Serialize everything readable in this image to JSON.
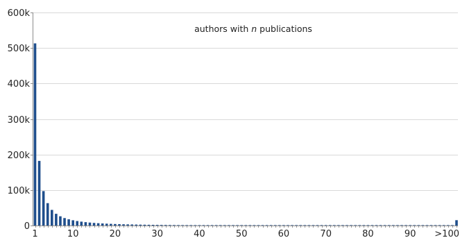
{
  "chart_data": {
    "type": "bar",
    "title_parts": [
      "authors with ",
      "n",
      " publications"
    ],
    "xlabel": "",
    "ylabel": "",
    "bar_color": "#1f4e8c",
    "ylim": [
      0,
      600000
    ],
    "yticks": [
      {
        "value": 0,
        "label": "0"
      },
      {
        "value": 100000,
        "label": "100k"
      },
      {
        "value": 200000,
        "label": "200k"
      },
      {
        "value": 300000,
        "label": "300k"
      },
      {
        "value": 400000,
        "label": "400k"
      },
      {
        "value": 500000,
        "label": "500k"
      },
      {
        "value": 600000,
        "label": "600k"
      }
    ],
    "xticks": [
      "1",
      "10",
      "20",
      "30",
      "40",
      "50",
      "60",
      "70",
      "80",
      "90",
      ">100"
    ],
    "categories": [
      "1",
      "2",
      "3",
      "4",
      "5",
      "6",
      "7",
      "8",
      "9",
      "10",
      "11",
      "12",
      "13",
      "14",
      "15",
      "16",
      "17",
      "18",
      "19",
      "20",
      "21",
      "22",
      "23",
      "24",
      "25",
      "26",
      "27",
      "28",
      "29",
      "30",
      "31",
      "32",
      "33",
      "34",
      "35",
      "36",
      "37",
      "38",
      "39",
      "40",
      "41",
      "42",
      "43",
      "44",
      "45",
      "46",
      "47",
      "48",
      "49",
      "50",
      "51",
      "52",
      "53",
      "54",
      "55",
      "56",
      "57",
      "58",
      "59",
      "60",
      "61",
      "62",
      "63",
      "64",
      "65",
      "66",
      "67",
      "68",
      "69",
      "70",
      "71",
      "72",
      "73",
      "74",
      "75",
      "76",
      "77",
      "78",
      "79",
      "80",
      "81",
      "82",
      "83",
      "84",
      "85",
      "86",
      "87",
      "88",
      "89",
      "90",
      "91",
      "92",
      "93",
      "94",
      "95",
      "96",
      "97",
      "98",
      "99",
      "100",
      ">100"
    ],
    "values": [
      513000,
      182000,
      97000,
      63000,
      44000,
      33000,
      26000,
      21000,
      17500,
      14800,
      12600,
      10900,
      9500,
      8300,
      7300,
      6500,
      5800,
      5200,
      4700,
      4250,
      3850,
      3500,
      3200,
      2950,
      2700,
      2480,
      2290,
      2120,
      1960,
      1820,
      1690,
      1580,
      1470,
      1380,
      1290,
      1210,
      1140,
      1070,
      1010,
      950,
      900,
      850,
      810,
      770,
      730,
      690,
      660,
      630,
      600,
      570,
      545,
      520,
      497,
      475,
      455,
      435,
      417,
      400,
      384,
      368,
      353,
      339,
      326,
      313,
      301,
      290,
      279,
      269,
      259,
      250,
      241,
      233,
      225,
      217,
      210,
      203,
      196,
      190,
      184,
      178,
      172,
      167,
      162,
      157,
      152,
      148,
      144,
      140,
      136,
      132,
      128,
      125,
      122,
      119,
      116,
      113,
      110,
      107,
      104,
      101,
      15000
    ]
  }
}
